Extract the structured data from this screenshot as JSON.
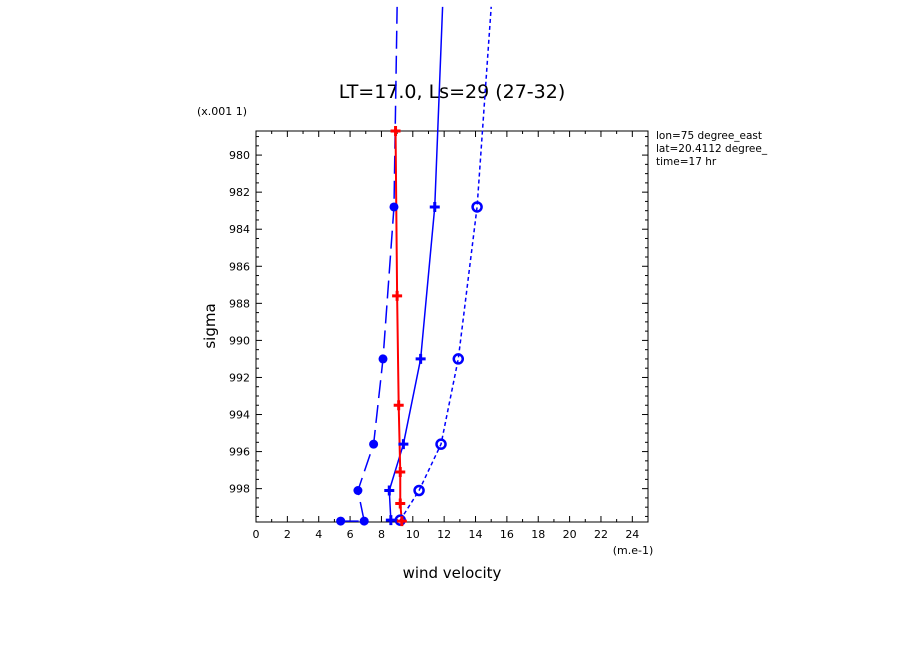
{
  "chart_data": {
    "type": "line",
    "title": "LT=17.0, Ls=29 (27-32)",
    "xlabel": "wind velocity",
    "ylabel": "sigma",
    "x_unit_label": "(m.e-1)",
    "y_unit_label": "(x.001 1)",
    "annotations": [
      "lon=75 degree_east",
      "lat=20.4112 degree_",
      "time=17 hr"
    ],
    "xlim": [
      0,
      25
    ],
    "ylim": [
      999.8,
      978.7
    ],
    "x_ticks": [
      0,
      2,
      4,
      6,
      8,
      10,
      12,
      14,
      16,
      18,
      20,
      22,
      24
    ],
    "y_ticks": [
      980,
      982,
      984,
      986,
      988,
      990,
      992,
      994,
      996,
      998
    ],
    "grid": false,
    "series": [
      {
        "style": "long-dash",
        "color": "#0000ff",
        "marker": "filled-circle",
        "x": [
          5.4,
          6.9,
          6.5,
          7.5,
          8.1,
          8.8,
          9.0
        ],
        "y": [
          999.75,
          999.75,
          998.1,
          995.6,
          991.0,
          982.8,
          972.0
        ]
      },
      {
        "style": "solid",
        "color": "#0000ff",
        "marker": "cross",
        "x": [
          8.6,
          8.5,
          9.4,
          10.5,
          11.4,
          11.9
        ],
        "y": [
          999.7,
          998.1,
          995.6,
          991.0,
          982.8,
          972.0
        ]
      },
      {
        "style": "short-dash",
        "color": "#0000ff",
        "marker": "open-circle",
        "x": [
          9.2,
          10.4,
          11.8,
          12.9,
          14.1,
          15.0
        ],
        "y": [
          999.7,
          998.1,
          995.6,
          991.0,
          982.8,
          972.0
        ]
      },
      {
        "style": "solid",
        "color": "#ff0000",
        "marker": "cross",
        "x": [
          9.3,
          9.2,
          9.2,
          9.1,
          9.0,
          8.9
        ],
        "y": [
          999.75,
          998.8,
          997.1,
          993.5,
          987.6,
          978.7
        ]
      }
    ]
  }
}
